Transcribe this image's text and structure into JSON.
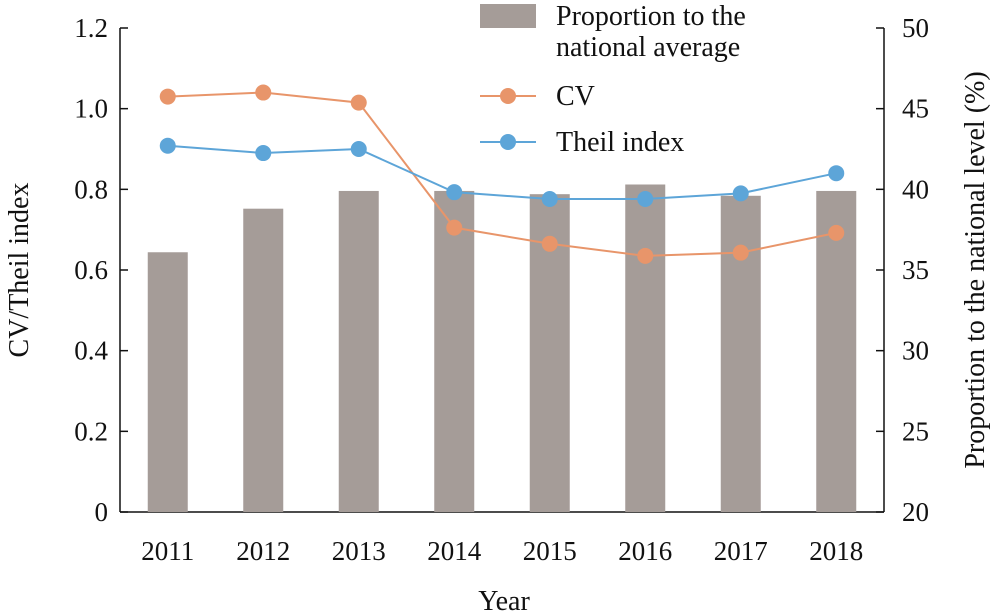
{
  "chart_data": {
    "type": "bar+line",
    "categories": [
      "2011",
      "2012",
      "2013",
      "2014",
      "2015",
      "2016",
      "2017",
      "2018"
    ],
    "xlabel": "Year",
    "ylabel_left": "CV/Theil index",
    "ylabel_right": "Proportion to the national level (%)",
    "ylim_left": [
      0,
      1.2
    ],
    "yticks_left": [
      "0",
      "0.2",
      "0.4",
      "0.6",
      "0.8",
      "1.0",
      "1.2"
    ],
    "ylim_right": [
      20,
      50
    ],
    "yticks_right": [
      "20",
      "25",
      "30",
      "35",
      "40",
      "45",
      "50"
    ],
    "bars": {
      "name_line1": "Proportion to the",
      "name_line2": "national average",
      "axis": "right",
      "color": "#a59c98",
      "values": [
        36.1,
        38.8,
        39.9,
        39.9,
        39.7,
        40.3,
        39.6,
        39.9
      ]
    },
    "series": [
      {
        "name": "CV",
        "axis": "left",
        "color": "#e8956a",
        "values": [
          1.03,
          1.04,
          1.015,
          0.705,
          0.665,
          0.635,
          0.643,
          0.692
        ]
      },
      {
        "name": "Theil index",
        "axis": "left",
        "color": "#5da5d8",
        "values": [
          0.908,
          0.89,
          0.9,
          0.793,
          0.776,
          0.776,
          0.79,
          0.84
        ]
      }
    ],
    "grid": false,
    "legend_position": "top-center"
  }
}
